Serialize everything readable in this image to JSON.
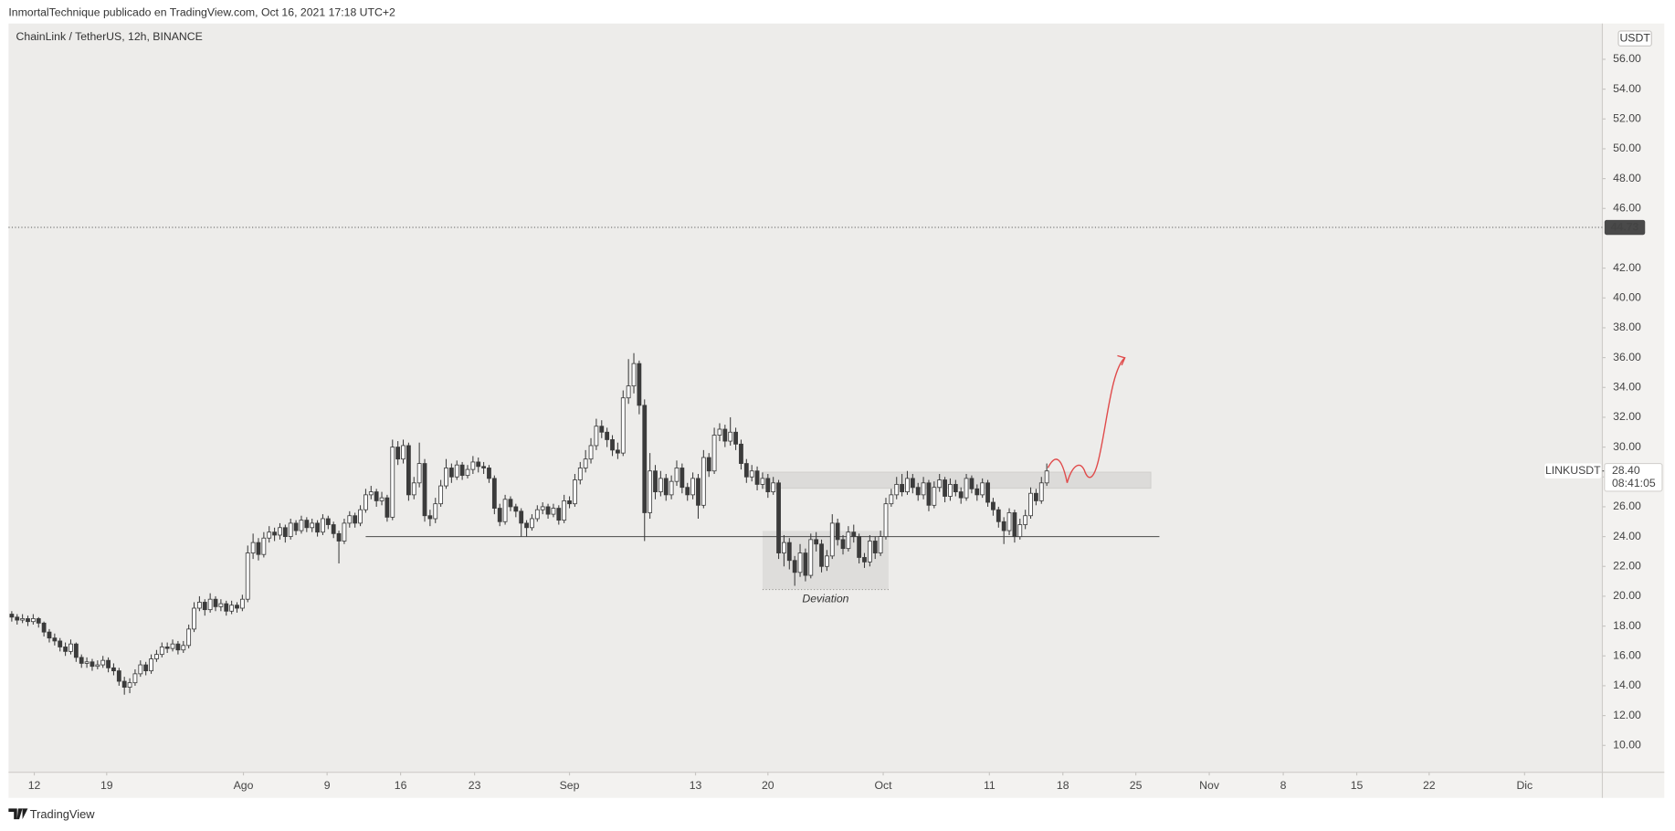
{
  "header": {
    "text": "InmortalTechnique publicado en TradingView.com, Oct 16, 2021 17:18 UTC+2"
  },
  "chart_data": {
    "type": "candlestick",
    "title": "ChainLink / TetherUS, 12h, BINANCE",
    "y_unit": "USDT",
    "symbol": "LINKUSDT",
    "candle_color": "#3b3b3b",
    "up_color": "#ffffff",
    "grid": false,
    "open": [
      18.8,
      18.6,
      18.4,
      18.5,
      18.3,
      18.5,
      18.2,
      17.6,
      17.2,
      17.0,
      16.6,
      16.3,
      16.8,
      15.9,
      15.5,
      15.6,
      15.3,
      15.4,
      15.7,
      15.2,
      15.0,
      14.3,
      13.9,
      14.2,
      14.8,
      15.4,
      15.0,
      15.8,
      16.1,
      16.6,
      16.5,
      16.8,
      16.4,
      16.7,
      17.8,
      19.2,
      19.6,
      19.1,
      19.8,
      19.3,
      19.5,
      19.0,
      19.4,
      19.2,
      19.8,
      22.9,
      23.6,
      22.8,
      23.9,
      24.3,
      24.1,
      24.6,
      24.0,
      24.9,
      24.4,
      25.1,
      24.6,
      24.9,
      24.3,
      25.2,
      24.8,
      24.2,
      23.7,
      24.9,
      25.4,
      24.9,
      25.8,
      26.8,
      27.0,
      26.4,
      26.6,
      25.3,
      30.0,
      29.2,
      30.1,
      26.8,
      27.6,
      28.9,
      25.4,
      25.2,
      26.2,
      27.4,
      28.6,
      28.0,
      28.8,
      28.1,
      28.5,
      29.0,
      28.7,
      28.6,
      27.9,
      25.9,
      25.0,
      26.5,
      26.0,
      25.7,
      24.9,
      24.6,
      25.2,
      25.8,
      26.0,
      25.5,
      25.9,
      25.1,
      26.4,
      26.2,
      27.8,
      28.6,
      29.2,
      30.1,
      31.4,
      31.0,
      30.5,
      29.8,
      29.6,
      33.3,
      34.1,
      35.6,
      32.8,
      25.6,
      28.4,
      27.0,
      27.9,
      26.8,
      27.7,
      28.6,
      27.3,
      26.8,
      27.9,
      26.1,
      29.3,
      28.4,
      30.8,
      31.2,
      30.4,
      31.0,
      30.2,
      28.9,
      28.0,
      28.4,
      27.5,
      27.9,
      27.0,
      27.6,
      22.9,
      23.6,
      22.4,
      21.6,
      22.9,
      21.4,
      23.8,
      23.5,
      22.0,
      22.7,
      24.9,
      23.8,
      23.2,
      24.3,
      24.0,
      22.6,
      22.3,
      23.7,
      22.9,
      24.0,
      26.2,
      26.8,
      27.5,
      27.0,
      27.9,
      27.3,
      26.8,
      27.6,
      26.1,
      27.3,
      27.8,
      26.7,
      27.5,
      27.0,
      26.6,
      27.9,
      27.2,
      26.8,
      27.6,
      26.3,
      25.8,
      25.0,
      24.4,
      25.6,
      24.0,
      24.8,
      25.4,
      26.9,
      26.4,
      27.6
    ],
    "high": [
      19.0,
      18.8,
      18.8,
      18.7,
      18.8,
      18.6,
      18.3,
      17.8,
      17.5,
      17.2,
      16.9,
      17.1,
      16.9,
      16.1,
      15.9,
      15.8,
      15.7,
      16.0,
      15.9,
      15.5,
      15.2,
      14.6,
      14.5,
      15.1,
      15.7,
      15.6,
      16.1,
      16.4,
      16.9,
      16.9,
      17.1,
      17.0,
      17.0,
      18.1,
      19.6,
      20.0,
      19.8,
      20.2,
      20.0,
      19.8,
      19.7,
      19.7,
      19.6,
      20.1,
      23.4,
      24.2,
      23.9,
      24.3,
      24.7,
      24.6,
      24.9,
      24.8,
      25.2,
      25.1,
      25.4,
      25.3,
      25.2,
      25.1,
      25.5,
      25.4,
      25.0,
      24.4,
      25.2,
      25.7,
      25.6,
      26.1,
      27.2,
      27.4,
      27.2,
      27.0,
      26.8,
      30.5,
      30.4,
      30.5,
      30.3,
      28.0,
      30.3,
      29.2,
      25.8,
      26.6,
      27.8,
      29.2,
      28.9,
      29.1,
      29.0,
      28.8,
      29.4,
      29.3,
      29.0,
      28.8,
      28.1,
      26.2,
      26.8,
      26.7,
      26.2,
      25.9,
      25.1,
      25.5,
      26.1,
      26.3,
      26.2,
      26.2,
      26.1,
      26.8,
      26.7,
      28.2,
      29.0,
      29.8,
      30.6,
      31.9,
      31.8,
      31.3,
      30.8,
      30.3,
      33.8,
      35.9,
      36.3,
      35.8,
      33.2,
      29.6,
      28.8,
      28.4,
      28.2,
      28.1,
      29.1,
      28.9,
      27.6,
      28.3,
      28.2,
      29.8,
      29.6,
      31.3,
      31.6,
      31.5,
      32.0,
      31.3,
      30.5,
      29.2,
      28.8,
      28.7,
      28.3,
      28.2,
      28.0,
      27.8,
      24.1,
      23.9,
      22.7,
      23.5,
      23.2,
      24.2,
      24.3,
      23.8,
      23.1,
      25.5,
      25.2,
      24.1,
      24.7,
      24.8,
      24.2,
      22.9,
      24.1,
      24.0,
      24.4,
      26.6,
      27.2,
      28.0,
      28.2,
      28.4,
      28.2,
      27.6,
      28.0,
      27.8,
      27.7,
      28.2,
      28.0,
      27.9,
      27.8,
      27.3,
      28.2,
      28.1,
      27.5,
      27.9,
      27.8,
      26.6,
      26.0,
      25.3,
      25.9,
      25.8,
      25.2,
      25.8,
      27.3,
      27.2,
      28.0,
      28.9
    ],
    "low": [
      18.3,
      18.1,
      18.2,
      18.0,
      18.1,
      17.9,
      17.3,
      16.9,
      16.7,
      16.3,
      16.0,
      16.1,
      15.6,
      15.2,
      15.2,
      15.0,
      15.1,
      15.2,
      14.9,
      14.7,
      14.0,
      13.4,
      13.5,
      14.0,
      14.6,
      14.7,
      14.8,
      15.6,
      15.9,
      16.2,
      16.3,
      16.1,
      16.2,
      16.5,
      17.6,
      19.0,
      18.7,
      18.9,
      19.0,
      19.0,
      18.7,
      18.8,
      18.9,
      19.0,
      19.6,
      22.5,
      22.4,
      22.6,
      23.6,
      23.7,
      23.8,
      23.6,
      23.8,
      24.1,
      24.2,
      24.3,
      24.3,
      24.0,
      24.1,
      24.5,
      23.9,
      22.2,
      23.5,
      24.6,
      24.6,
      24.7,
      25.6,
      26.5,
      26.0,
      26.1,
      25.0,
      25.1,
      28.8,
      28.9,
      26.4,
      26.5,
      27.3,
      25.0,
      24.7,
      24.9,
      26.0,
      27.2,
      27.6,
      27.8,
      27.8,
      27.9,
      28.2,
      28.3,
      28.2,
      27.6,
      25.5,
      24.7,
      24.8,
      25.7,
      25.3,
      24.0,
      24.0,
      24.4,
      25.0,
      25.5,
      25.2,
      25.3,
      24.8,
      24.9,
      25.9,
      26.0,
      27.5,
      28.3,
      28.9,
      29.8,
      30.6,
      30.0,
      29.4,
      29.2,
      29.4,
      32.9,
      33.6,
      32.2,
      23.7,
      25.2,
      26.5,
      26.7,
      26.4,
      26.5,
      27.4,
      26.9,
      26.4,
      26.5,
      25.2,
      25.9,
      28.0,
      28.2,
      30.4,
      30.0,
      30.1,
      29.8,
      28.5,
      27.6,
      27.7,
      27.1,
      27.2,
      26.6,
      26.8,
      22.5,
      22.0,
      21.8,
      20.7,
      21.3,
      21.0,
      21.2,
      23.0,
      21.6,
      21.7,
      22.5,
      23.4,
      22.8,
      23.0,
      23.6,
      22.2,
      21.9,
      22.0,
      22.5,
      22.7,
      23.8,
      26.0,
      26.5,
      26.7,
      26.8,
      26.9,
      26.4,
      26.5,
      25.7,
      25.9,
      27.0,
      26.3,
      26.4,
      26.7,
      26.2,
      26.4,
      26.9,
      26.4,
      26.6,
      26.0,
      25.4,
      24.6,
      23.5,
      24.1,
      23.6,
      23.8,
      24.5,
      25.2,
      26.1,
      26.2,
      27.4
    ],
    "close": [
      18.6,
      18.4,
      18.5,
      18.3,
      18.5,
      18.2,
      17.6,
      17.2,
      17.0,
      16.6,
      16.3,
      16.8,
      15.9,
      15.5,
      15.6,
      15.3,
      15.4,
      15.7,
      15.2,
      15.0,
      14.3,
      13.9,
      14.2,
      14.8,
      15.4,
      15.0,
      15.8,
      16.1,
      16.6,
      16.5,
      16.8,
      16.4,
      16.7,
      17.8,
      19.2,
      19.6,
      19.1,
      19.8,
      19.3,
      19.5,
      19.0,
      19.4,
      19.2,
      19.8,
      22.9,
      23.6,
      22.8,
      23.9,
      24.3,
      24.1,
      24.6,
      24.0,
      24.9,
      24.4,
      25.1,
      24.6,
      24.9,
      24.3,
      25.2,
      24.8,
      24.2,
      23.7,
      24.9,
      25.4,
      24.9,
      25.8,
      26.8,
      27.0,
      26.4,
      26.6,
      25.3,
      30.0,
      29.2,
      30.1,
      26.8,
      27.6,
      28.9,
      25.4,
      25.2,
      26.2,
      27.4,
      28.6,
      28.0,
      28.8,
      28.1,
      28.5,
      29.0,
      28.7,
      28.6,
      27.9,
      25.9,
      25.0,
      26.5,
      26.0,
      25.7,
      24.9,
      24.6,
      25.2,
      25.8,
      26.0,
      25.5,
      25.9,
      25.1,
      26.4,
      26.2,
      27.8,
      28.6,
      29.2,
      30.1,
      31.4,
      31.0,
      30.5,
      29.8,
      29.6,
      33.3,
      34.1,
      35.6,
      32.8,
      25.6,
      28.4,
      27.0,
      27.9,
      26.8,
      27.7,
      28.6,
      27.3,
      26.8,
      27.9,
      26.1,
      29.3,
      28.4,
      30.8,
      31.2,
      30.4,
      31.0,
      30.2,
      28.9,
      28.0,
      28.4,
      27.5,
      27.9,
      27.0,
      27.6,
      22.9,
      23.6,
      22.4,
      21.6,
      22.9,
      21.4,
      23.8,
      23.5,
      22.0,
      22.7,
      24.9,
      23.8,
      23.2,
      24.3,
      24.0,
      22.6,
      22.3,
      23.7,
      22.9,
      24.0,
      26.2,
      26.8,
      27.5,
      27.0,
      27.9,
      27.3,
      26.8,
      27.6,
      26.1,
      27.3,
      27.8,
      26.7,
      27.5,
      27.0,
      26.6,
      27.9,
      27.2,
      26.8,
      27.6,
      26.3,
      25.8,
      25.0,
      24.4,
      25.6,
      24.0,
      24.8,
      25.4,
      26.9,
      26.4,
      27.6,
      28.4
    ],
    "xlim": [
      -0.6,
      296.6
    ],
    "xticks": [
      {
        "value": 4.2,
        "label": "12"
      },
      {
        "value": 17.7,
        "label": "19"
      },
      {
        "value": 43.2,
        "label": "Ago"
      },
      {
        "value": 58.8,
        "label": "9"
      },
      {
        "value": 72.5,
        "label": "16"
      },
      {
        "value": 86.3,
        "label": "23"
      },
      {
        "value": 104.0,
        "label": "Sep"
      },
      {
        "value": 127.5,
        "label": "13"
      },
      {
        "value": 141.0,
        "label": "20"
      },
      {
        "value": 162.5,
        "label": "Oct"
      },
      {
        "value": 182.3,
        "label": "11"
      },
      {
        "value": 196.0,
        "label": "18"
      },
      {
        "value": 209.6,
        "label": "25"
      },
      {
        "value": 223.3,
        "label": "Nov"
      },
      {
        "value": 237.1,
        "label": "8"
      },
      {
        "value": 250.8,
        "label": "15"
      },
      {
        "value": 264.3,
        "label": "22"
      },
      {
        "value": 282.1,
        "label": "Dic"
      }
    ],
    "ylim": [
      8.2,
      58.4
    ],
    "yticks": [
      {
        "value": 10,
        "label": "10.00"
      },
      {
        "value": 12,
        "label": "12.00"
      },
      {
        "value": 14,
        "label": "14.00"
      },
      {
        "value": 16,
        "label": "16.00"
      },
      {
        "value": 18,
        "label": "18.00"
      },
      {
        "value": 20,
        "label": "20.00"
      },
      {
        "value": 22,
        "label": "22.00"
      },
      {
        "value": 24,
        "label": "24.00"
      },
      {
        "value": 26,
        "label": "26.00"
      },
      {
        "value": 28,
        "label": "28.00"
      },
      {
        "value": 30,
        "label": "30.00"
      },
      {
        "value": 32,
        "label": "32.00"
      },
      {
        "value": 34,
        "label": "34.00"
      },
      {
        "value": 36,
        "label": "36.00"
      },
      {
        "value": 38,
        "label": "38.00"
      },
      {
        "value": 40,
        "label": "40.00"
      },
      {
        "value": 42,
        "label": "42.00"
      },
      {
        "value": 46,
        "label": "46.00"
      },
      {
        "value": 48,
        "label": "48.00"
      },
      {
        "value": 50,
        "label": "50.00"
      },
      {
        "value": 52,
        "label": "52.00"
      },
      {
        "value": 54,
        "label": "54.00"
      },
      {
        "value": 56,
        "label": "56.00"
      }
    ],
    "alert_line": 44.73,
    "last_price": {
      "value": 28.4,
      "label": "28.40"
    },
    "countdown": "08:41:05",
    "support_line": {
      "value": 24.0,
      "x": [
        66,
        214
      ]
    },
    "resistance_zone": {
      "y": [
        27.24,
        28.32
      ],
      "x": [
        140,
        212.4
      ]
    },
    "deviation_zone": {
      "y": [
        20.45,
        24.38
      ],
      "x": [
        140,
        163.5
      ],
      "label": "Deviation"
    }
  },
  "footer": {
    "brand": "TradingView"
  }
}
